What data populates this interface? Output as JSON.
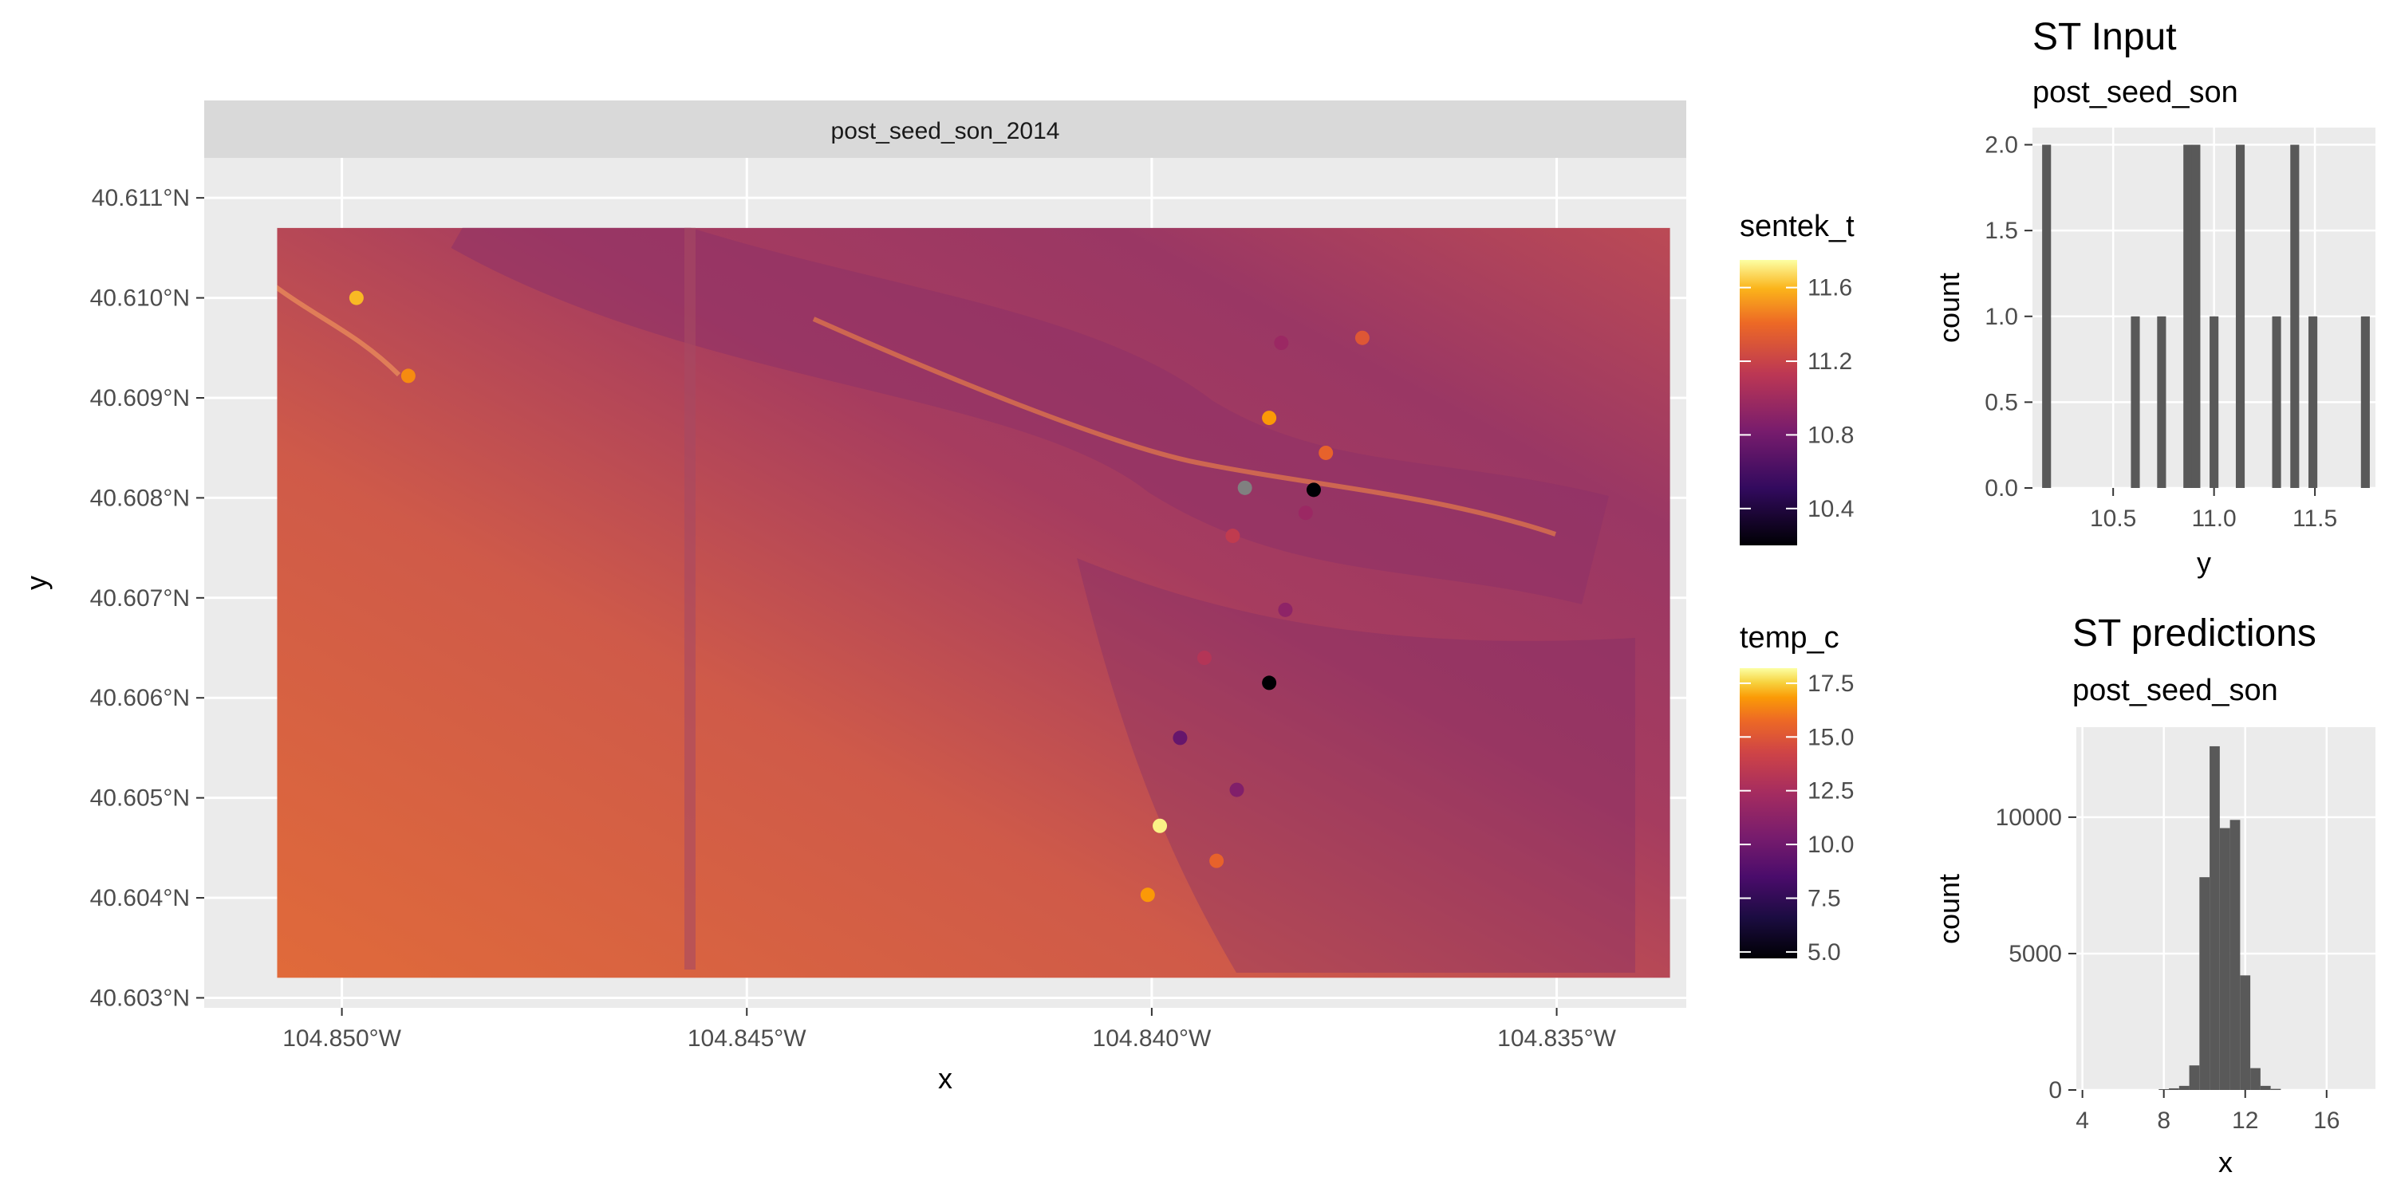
{
  "map_chart": {
    "type": "heatmap",
    "facet_label": "post_seed_son_2014",
    "xlabel": "x",
    "ylabel": "y",
    "x_range": [
      -104.8517,
      -104.8334
    ],
    "y_range": [
      40.6029,
      40.6114
    ],
    "x_ticks": [
      {
        "value": -104.85,
        "label": "104.850°W"
      },
      {
        "value": -104.845,
        "label": "104.845°W"
      },
      {
        "value": -104.84,
        "label": "104.840°W"
      },
      {
        "value": -104.835,
        "label": "104.835°W"
      }
    ],
    "y_ticks": [
      {
        "value": 40.603,
        "label": "40.603°N"
      },
      {
        "value": 40.604,
        "label": "40.604°N"
      },
      {
        "value": 40.605,
        "label": "40.605°N"
      },
      {
        "value": 40.606,
        "label": "40.606°N"
      },
      {
        "value": 40.607,
        "label": "40.607°N"
      },
      {
        "value": 40.608,
        "label": "40.608°N"
      },
      {
        "value": 40.609,
        "label": "40.609°N"
      },
      {
        "value": 40.61,
        "label": "40.610°N"
      },
      {
        "value": 40.611,
        "label": "40.611°N"
      }
    ],
    "field_extent": {
      "x": [
        -104.8508,
        -104.8336
      ],
      "y": [
        40.6032,
        40.6107
      ]
    },
    "points": [
      {
        "x": -104.84982,
        "y": 40.61,
        "sentek_t": 11.5
      },
      {
        "x": -104.84918,
        "y": 40.60922,
        "sentek_t": 11.35
      },
      {
        "x": -104.8374,
        "y": 40.6096,
        "sentek_t": 11.15
      },
      {
        "x": -104.8384,
        "y": 40.60955,
        "sentek_t": 10.85
      },
      {
        "x": -104.83855,
        "y": 40.6088,
        "sentek_t": 11.4
      },
      {
        "x": -104.83785,
        "y": 40.60845,
        "sentek_t": 11.2
      },
      {
        "x": -104.83885,
        "y": 40.6081,
        "sentek_t": null
      },
      {
        "x": -104.838,
        "y": 40.60808,
        "sentek_t": 10.2
      },
      {
        "x": -104.8381,
        "y": 40.60785,
        "sentek_t": 10.85
      },
      {
        "x": -104.839,
        "y": 40.60762,
        "sentek_t": 11.0
      },
      {
        "x": -104.83835,
        "y": 40.60688,
        "sentek_t": 10.8
      },
      {
        "x": -104.83935,
        "y": 40.6064,
        "sentek_t": 10.95
      },
      {
        "x": -104.83855,
        "y": 40.60615,
        "sentek_t": 10.2
      },
      {
        "x": -104.83965,
        "y": 40.6056,
        "sentek_t": 10.65
      },
      {
        "x": -104.83895,
        "y": 40.60508,
        "sentek_t": 10.75
      },
      {
        "x": -104.8399,
        "y": 40.60472,
        "sentek_t": 11.7
      },
      {
        "x": -104.8392,
        "y": 40.60437,
        "sentek_t": 11.2
      },
      {
        "x": -104.84005,
        "y": 40.60403,
        "sentek_t": 11.4
      }
    ]
  },
  "legend_sentek": {
    "title": "sentek_t",
    "range": [
      10.2,
      11.75
    ],
    "ticks": [
      {
        "value": 11.6,
        "label": "11.6"
      },
      {
        "value": 11.2,
        "label": "11.2"
      },
      {
        "value": 10.8,
        "label": "10.8"
      },
      {
        "value": 10.4,
        "label": "10.4"
      }
    ],
    "colormap": "inferno"
  },
  "legend_temp": {
    "title": "temp_c",
    "range": [
      4.7,
      18.2
    ],
    "ticks": [
      {
        "value": 17.5,
        "label": "17.5"
      },
      {
        "value": 15.0,
        "label": "15.0"
      },
      {
        "value": 12.5,
        "label": "12.5"
      },
      {
        "value": 10.0,
        "label": "10.0"
      },
      {
        "value": 7.5,
        "label": "7.5"
      },
      {
        "value": 5.0,
        "label": "5.0"
      }
    ],
    "colormap": "inferno"
  },
  "chart_data": [
    {
      "type": "heatmap",
      "title": "",
      "subtitle": "",
      "facet": "post_seed_son_2014",
      "xlabel": "x",
      "ylabel": "y",
      "note": "raster of temp_c over field with sentek_t points"
    },
    {
      "type": "bar",
      "title": "ST Input",
      "subtitle": "post_seed_son",
      "xlabel": "y",
      "ylabel": "count",
      "xlim": [
        10.1,
        11.8
      ],
      "ylim": [
        0,
        2.1
      ],
      "bin_width": 0.044,
      "x": [
        10.17,
        10.61,
        10.74,
        10.87,
        10.91,
        11.0,
        11.13,
        11.31,
        11.4,
        11.49,
        11.75
      ],
      "values": [
        2,
        1,
        1,
        2,
        2,
        1,
        2,
        1,
        2,
        1,
        1
      ],
      "x_ticks": [
        {
          "value": 10.5,
          "label": "10.5"
        },
        {
          "value": 11.0,
          "label": "11.0"
        },
        {
          "value": 11.5,
          "label": "11.5"
        }
      ],
      "y_ticks": [
        {
          "value": 0.0,
          "label": "0.0"
        },
        {
          "value": 0.5,
          "label": "0.5"
        },
        {
          "value": 1.0,
          "label": "1.0"
        },
        {
          "value": 1.5,
          "label": "1.5"
        },
        {
          "value": 2.0,
          "label": "2.0"
        }
      ]
    },
    {
      "type": "bar",
      "title": "ST predictions",
      "subtitle": "post_seed_son",
      "xlabel": "x",
      "ylabel": "count",
      "xlim": [
        3.7,
        18.4
      ],
      "ylim": [
        0,
        13300
      ],
      "bin_width": 0.5,
      "x": [
        8.0,
        8.5,
        9.0,
        9.5,
        10.0,
        10.5,
        11.0,
        11.5,
        12.0,
        12.5,
        13.0,
        13.5
      ],
      "values": [
        30,
        60,
        150,
        900,
        7800,
        12600,
        9600,
        9900,
        4200,
        800,
        150,
        40
      ],
      "x_ticks": [
        {
          "value": 4,
          "label": "4"
        },
        {
          "value": 8,
          "label": "8"
        },
        {
          "value": 12,
          "label": "12"
        },
        {
          "value": 16,
          "label": "16"
        }
      ],
      "y_ticks": [
        {
          "value": 0,
          "label": "0"
        },
        {
          "value": 5000,
          "label": "5000"
        },
        {
          "value": 10000,
          "label": "10000"
        }
      ]
    }
  ]
}
